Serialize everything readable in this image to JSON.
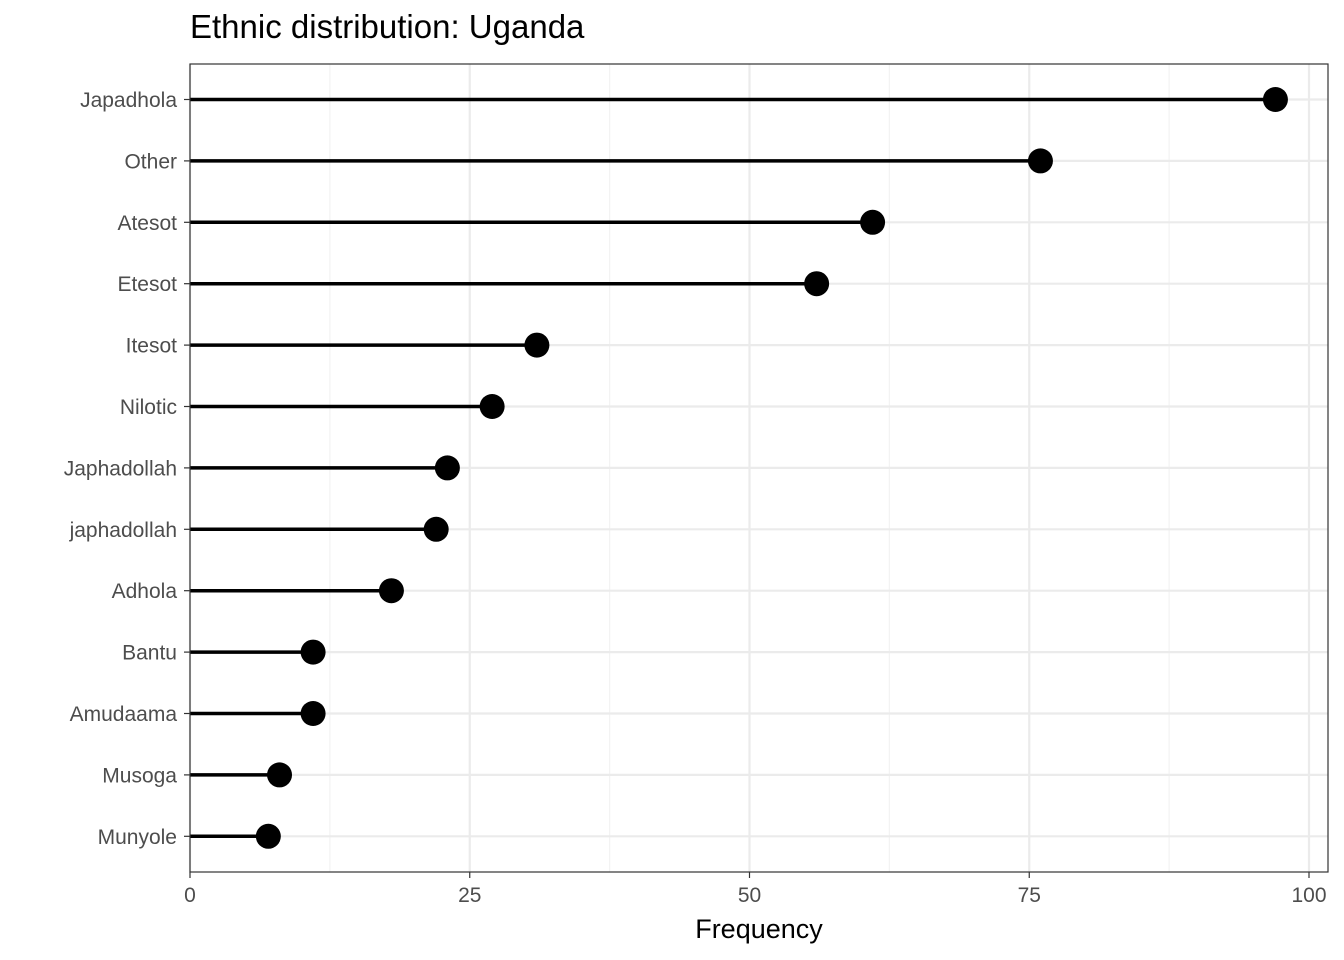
{
  "chart_data": {
    "type": "lollipop",
    "title": "Ethnic distribution: Uganda",
    "xlabel": "Frequency",
    "ylabel": "",
    "xlim": [
      0,
      100
    ],
    "x_ticks": [
      0,
      25,
      50,
      75,
      100
    ],
    "grid": true,
    "categories": [
      "Japadhola",
      "Other",
      "Atesot",
      "Etesot",
      "Itesot",
      "Nilotic",
      "Japhadollah",
      "japhadollah",
      "Adhola",
      "Bantu",
      "Amudaama",
      "Musoga",
      "Munyole"
    ],
    "values": [
      97,
      76,
      61,
      56,
      31,
      27,
      23,
      22,
      18,
      11,
      11,
      8,
      7
    ],
    "colors": {
      "mark": "#000000",
      "grid_major": "#ebebeb",
      "grid_minor": "#f3f3f3",
      "panel_border": "#333333",
      "tick_text": "#4d4d4d"
    }
  }
}
